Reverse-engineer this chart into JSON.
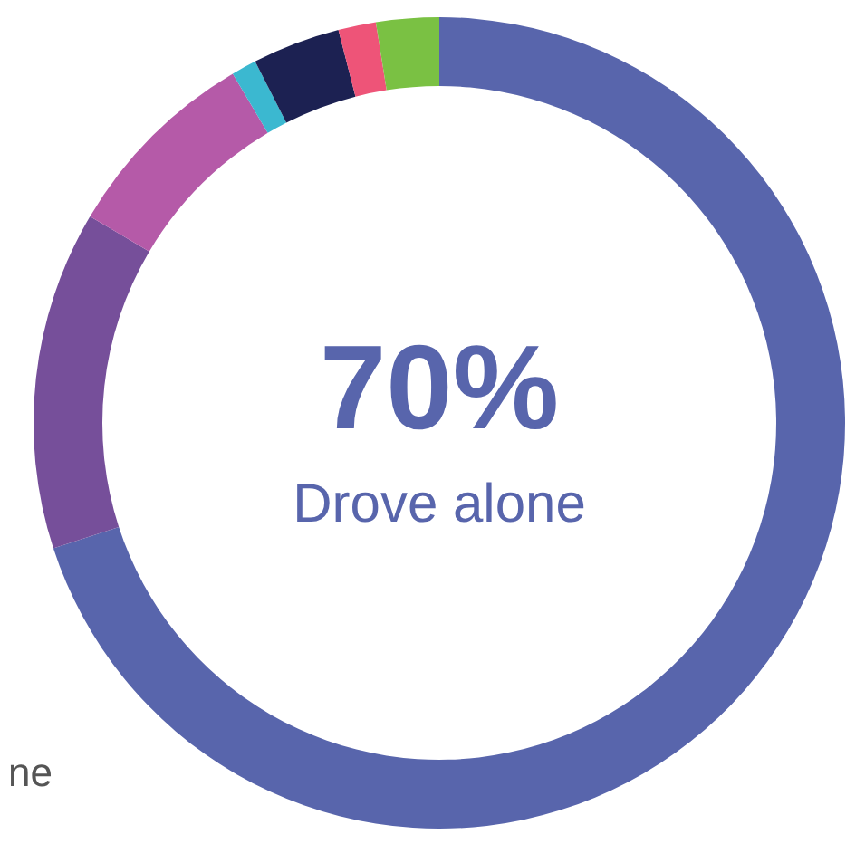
{
  "chart_data": {
    "type": "donut",
    "categories": [
      null,
      null,
      null,
      null,
      null,
      null,
      null
    ],
    "values": [
      70,
      13.5,
      8,
      1,
      3.5,
      1.5,
      2.5
    ],
    "colors": [
      "#5865ac",
      "#764f9a",
      "#b55aa8",
      "#3bb8d0",
      "#1c2152",
      "#ee5478",
      "#7ac143"
    ],
    "annotations": [
      "70%",
      "Drove alone",
      "ne"
    ]
  }
}
